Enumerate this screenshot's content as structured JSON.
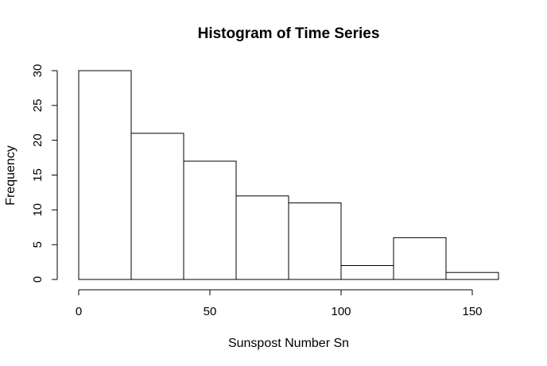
{
  "chart_data": {
    "type": "bar",
    "title": "Histogram of Time Series",
    "xlabel": "Sunspost Number Sn",
    "ylabel": "Frequency",
    "bins": [
      {
        "start": 0,
        "end": 20,
        "count": 30
      },
      {
        "start": 20,
        "end": 40,
        "count": 21
      },
      {
        "start": 40,
        "end": 60,
        "count": 17
      },
      {
        "start": 60,
        "end": 80,
        "count": 12
      },
      {
        "start": 80,
        "end": 100,
        "count": 11
      },
      {
        "start": 100,
        "end": 120,
        "count": 2
      },
      {
        "start": 120,
        "end": 140,
        "count": 6
      },
      {
        "start": 140,
        "end": 160,
        "count": 1
      }
    ],
    "xlim": [
      0,
      160
    ],
    "ylim": [
      0,
      30
    ],
    "x_ticks": [
      0,
      50,
      100,
      150
    ],
    "x_tick_labels": [
      "0",
      "50",
      "100",
      "150"
    ],
    "y_ticks": [
      0,
      5,
      10,
      15,
      20,
      25,
      30
    ],
    "y_tick_labels": [
      "0",
      "5",
      "10",
      "15",
      "20",
      "25",
      "30"
    ],
    "grid": false,
    "bar_fill": "#ffffff",
    "bar_stroke": "#000000"
  }
}
